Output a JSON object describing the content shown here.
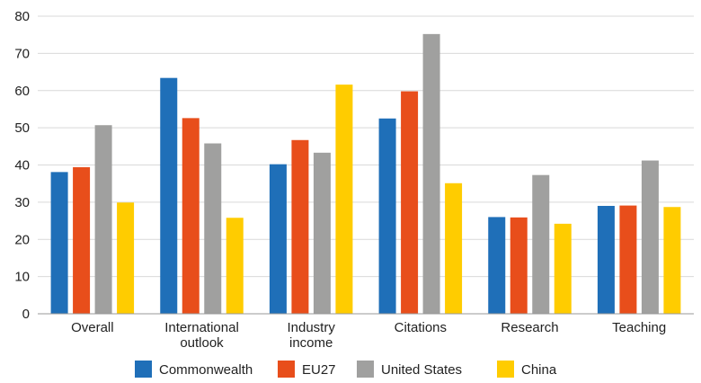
{
  "chart_data": {
    "type": "bar",
    "categories": [
      [
        "Overall"
      ],
      [
        "International",
        "outlook"
      ],
      [
        "Industry",
        "income"
      ],
      [
        "Citations"
      ],
      [
        "Research"
      ],
      [
        "Teaching"
      ]
    ],
    "series": [
      {
        "name": "Commonwealth",
        "color": "#1f6fb8",
        "values": [
          38.1,
          63.4,
          40.2,
          52.5,
          26.0,
          29.0
        ]
      },
      {
        "name": "EU27",
        "color": "#e84e1b",
        "values": [
          39.4,
          52.6,
          46.7,
          59.8,
          25.9,
          29.1
        ]
      },
      {
        "name": "United States",
        "color": "#a0a09f",
        "values": [
          50.7,
          45.8,
          43.3,
          75.2,
          37.3,
          41.2
        ]
      },
      {
        "name": "China",
        "color": "#ffcc00",
        "values": [
          29.9,
          25.8,
          61.6,
          35.1,
          24.2,
          28.7
        ]
      }
    ],
    "yticks": [
      "0",
      "10",
      "20",
      "30",
      "40",
      "50",
      "60",
      "70",
      "80"
    ],
    "ylim": [
      0,
      80
    ],
    "grid": true,
    "legend": "bottom"
  }
}
